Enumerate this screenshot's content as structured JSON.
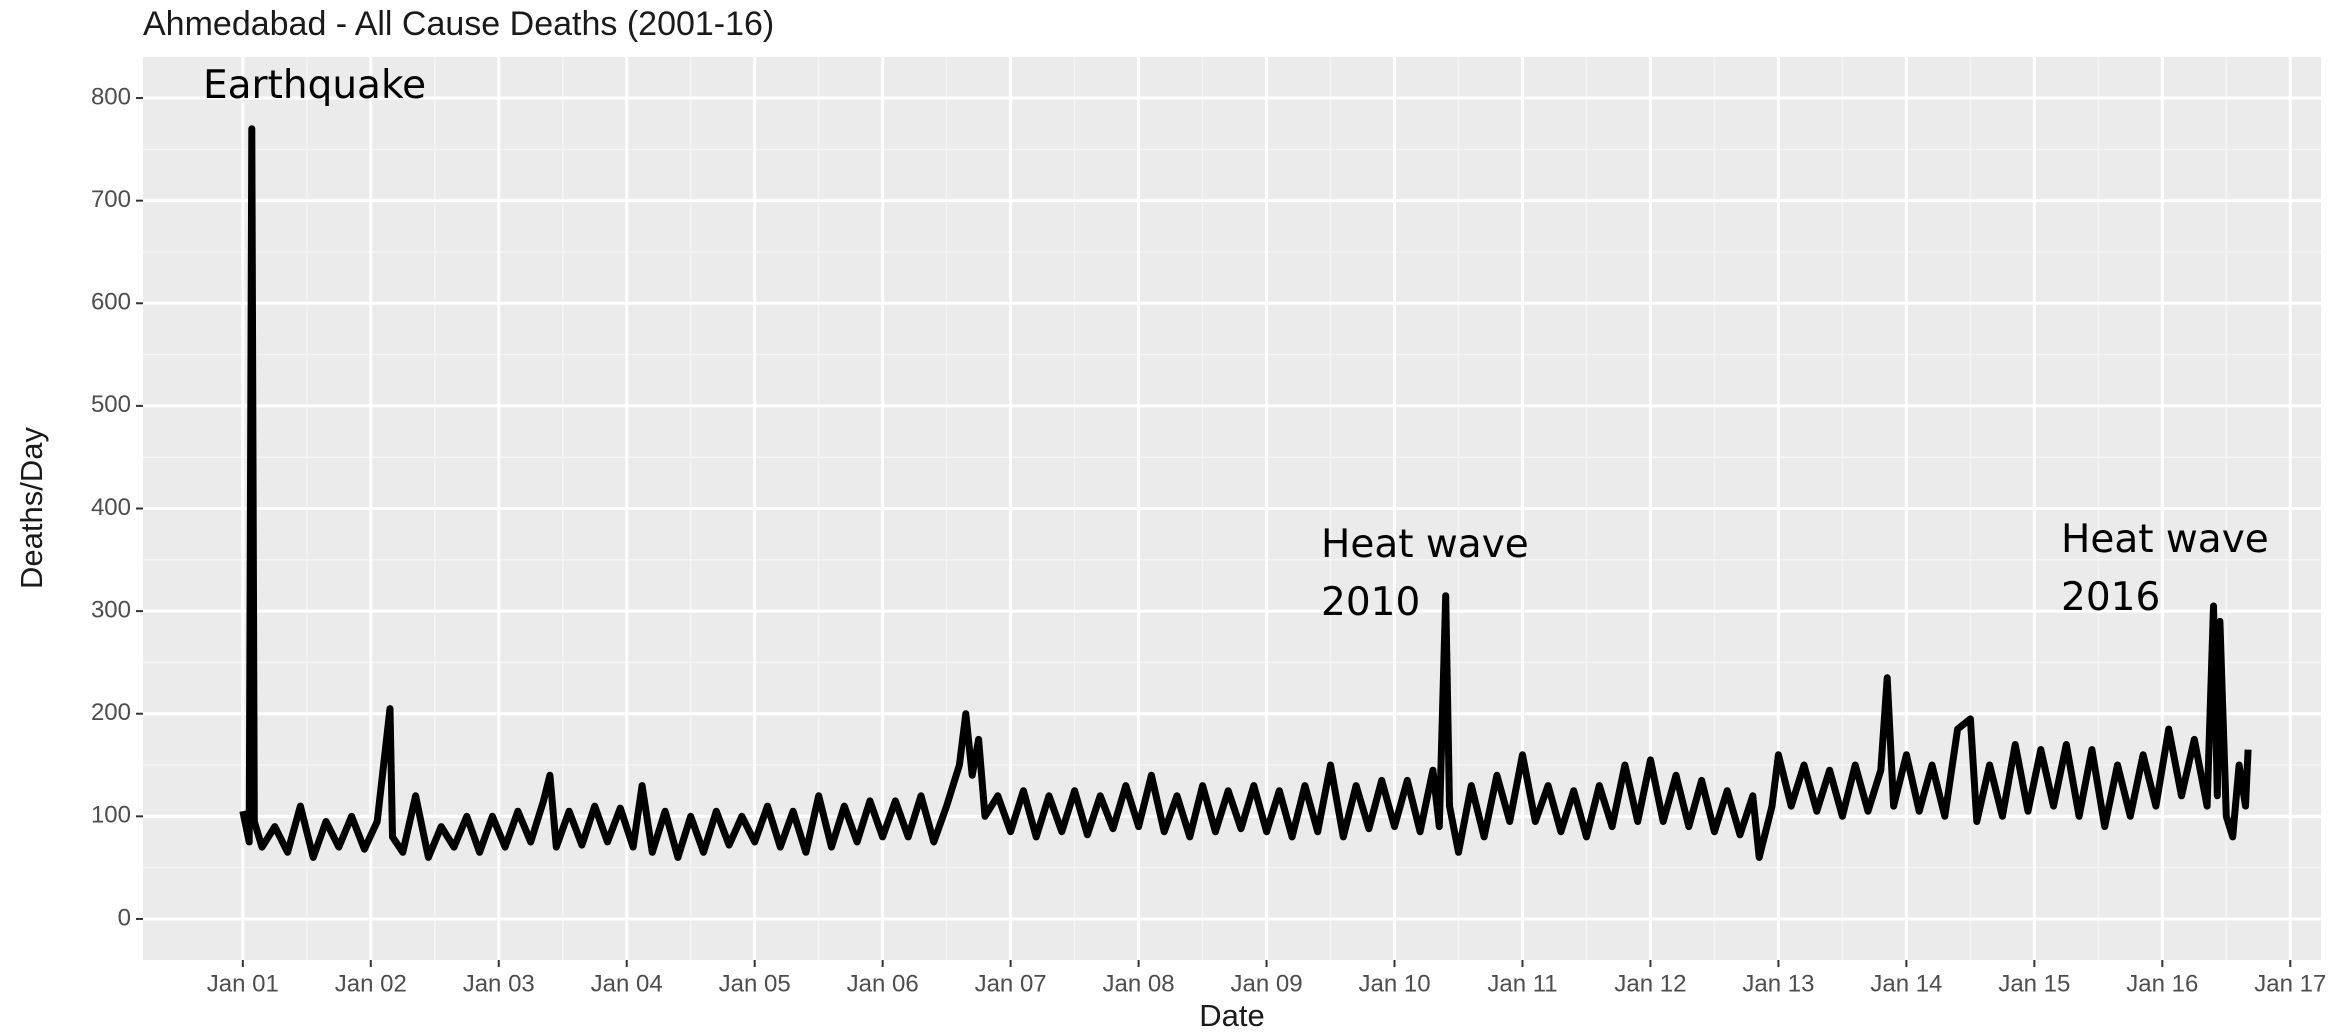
{
  "chart_data": {
    "type": "line",
    "title": "Ahmedabad - All Cause Deaths (2001-16)",
    "x_label": "Date",
    "y_label": "Deaths/Day",
    "annotations": [
      [
        "Earthquake"
      ],
      [
        "Heat wave",
        "2010"
      ],
      [
        "Heat wave",
        "2016"
      ]
    ],
    "xlim": [
      2000.22,
      2017.24
    ],
    "ylim": [
      -40,
      840
    ],
    "xticks": [
      {
        "value": 2001,
        "label": "Jan 01"
      },
      {
        "value": 2002,
        "label": "Jan 02"
      },
      {
        "value": 2003,
        "label": "Jan 03"
      },
      {
        "value": 2004,
        "label": "Jan 04"
      },
      {
        "value": 2005,
        "label": "Jan 05"
      },
      {
        "value": 2006,
        "label": "Jan 06"
      },
      {
        "value": 2007,
        "label": "Jan 07"
      },
      {
        "value": 2008,
        "label": "Jan 08"
      },
      {
        "value": 2009,
        "label": "Jan 09"
      },
      {
        "value": 2010,
        "label": "Jan 10"
      },
      {
        "value": 2011,
        "label": "Jan 11"
      },
      {
        "value": 2012,
        "label": "Jan 12"
      },
      {
        "value": 2013,
        "label": "Jan 13"
      },
      {
        "value": 2014,
        "label": "Jan 14"
      },
      {
        "value": 2015,
        "label": "Jan 15"
      },
      {
        "value": 2016,
        "label": "Jan 16"
      },
      {
        "value": 2017,
        "label": "Jan 17"
      }
    ],
    "yticks": [
      0,
      100,
      200,
      300,
      400,
      500,
      600,
      700,
      800
    ],
    "grid": true,
    "series": [
      {
        "name": "Deaths/Day",
        "color": "#000000",
        "x": [
          2001.0,
          2001.05,
          2001.07,
          2001.09,
          2001.15,
          2001.25,
          2001.35,
          2001.45,
          2001.55,
          2001.65,
          2001.75,
          2001.85,
          2001.95,
          2002.05,
          2002.15,
          2002.17,
          2002.25,
          2002.35,
          2002.45,
          2002.55,
          2002.65,
          2002.75,
          2002.85,
          2002.95,
          2003.05,
          2003.15,
          2003.25,
          2003.35,
          2003.4,
          2003.45,
          2003.55,
          2003.65,
          2003.75,
          2003.85,
          2003.95,
          2004.05,
          2004.12,
          2004.2,
          2004.3,
          2004.4,
          2004.5,
          2004.6,
          2004.7,
          2004.8,
          2004.9,
          2005.0,
          2005.1,
          2005.2,
          2005.3,
          2005.4,
          2005.5,
          2005.6,
          2005.7,
          2005.8,
          2005.9,
          2006.0,
          2006.1,
          2006.2,
          2006.3,
          2006.4,
          2006.5,
          2006.6,
          2006.65,
          2006.7,
          2006.75,
          2006.8,
          2006.9,
          2007.0,
          2007.1,
          2007.2,
          2007.3,
          2007.4,
          2007.5,
          2007.6,
          2007.7,
          2007.8,
          2007.9,
          2008.0,
          2008.1,
          2008.2,
          2008.3,
          2008.4,
          2008.5,
          2008.6,
          2008.7,
          2008.8,
          2008.9,
          2009.0,
          2009.1,
          2009.2,
          2009.3,
          2009.4,
          2009.5,
          2009.6,
          2009.7,
          2009.8,
          2009.9,
          2010.0,
          2010.1,
          2010.2,
          2010.3,
          2010.35,
          2010.4,
          2010.43,
          2010.5,
          2010.6,
          2010.7,
          2010.8,
          2010.9,
          2011.0,
          2011.1,
          2011.2,
          2011.3,
          2011.4,
          2011.5,
          2011.6,
          2011.7,
          2011.8,
          2011.9,
          2012.0,
          2012.1,
          2012.2,
          2012.3,
          2012.4,
          2012.5,
          2012.6,
          2012.7,
          2012.8,
          2012.85,
          2012.95,
          2013.0,
          2013.1,
          2013.2,
          2013.3,
          2013.4,
          2013.5,
          2013.6,
          2013.7,
          2013.8,
          2013.85,
          2013.9,
          2014.0,
          2014.1,
          2014.2,
          2014.3,
          2014.4,
          2014.5,
          2014.55,
          2014.65,
          2014.75,
          2014.85,
          2014.95,
          2015.05,
          2015.15,
          2015.25,
          2015.35,
          2015.45,
          2015.55,
          2015.65,
          2015.75,
          2015.85,
          2015.95,
          2016.05,
          2016.15,
          2016.25,
          2016.35,
          2016.4,
          2016.43,
          2016.45,
          2016.5,
          2016.55,
          2016.6,
          2016.65,
          2016.67
        ],
        "values": [
          105,
          75,
          770,
          95,
          70,
          90,
          65,
          110,
          60,
          95,
          70,
          100,
          68,
          95,
          205,
          80,
          65,
          120,
          60,
          90,
          70,
          100,
          65,
          100,
          70,
          105,
          75,
          115,
          140,
          70,
          105,
          72,
          110,
          75,
          108,
          70,
          130,
          65,
          105,
          60,
          100,
          65,
          105,
          72,
          100,
          75,
          110,
          70,
          105,
          65,
          120,
          70,
          110,
          75,
          115,
          80,
          115,
          80,
          120,
          75,
          110,
          150,
          200,
          140,
          175,
          100,
          120,
          85,
          125,
          80,
          120,
          85,
          125,
          82,
          120,
          88,
          130,
          90,
          140,
          85,
          120,
          80,
          130,
          85,
          125,
          88,
          130,
          85,
          125,
          80,
          130,
          85,
          150,
          80,
          130,
          88,
          135,
          90,
          135,
          85,
          145,
          90,
          315,
          110,
          65,
          130,
          80,
          140,
          95,
          160,
          95,
          130,
          85,
          125,
          80,
          130,
          90,
          150,
          95,
          155,
          95,
          140,
          90,
          135,
          85,
          125,
          82,
          120,
          60,
          110,
          160,
          110,
          150,
          105,
          145,
          100,
          150,
          105,
          145,
          235,
          110,
          160,
          105,
          150,
          100,
          185,
          195,
          95,
          150,
          100,
          170,
          105,
          165,
          110,
          170,
          100,
          165,
          90,
          150,
          100,
          160,
          110,
          185,
          120,
          175,
          110,
          305,
          120,
          290,
          100,
          80,
          150,
          110,
          165
        ]
      }
    ]
  }
}
